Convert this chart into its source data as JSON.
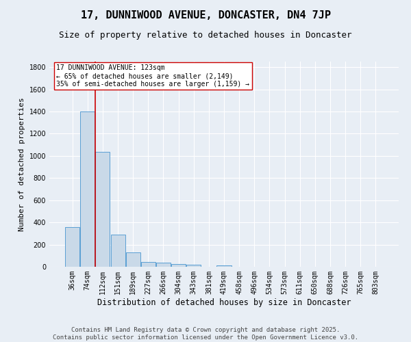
{
  "title": "17, DUNNIWOOD AVENUE, DONCASTER, DN4 7JP",
  "subtitle": "Size of property relative to detached houses in Doncaster",
  "xlabel": "Distribution of detached houses by size in Doncaster",
  "ylabel": "Number of detached properties",
  "categories": [
    "36sqm",
    "74sqm",
    "112sqm",
    "151sqm",
    "189sqm",
    "227sqm",
    "266sqm",
    "304sqm",
    "343sqm",
    "381sqm",
    "419sqm",
    "458sqm",
    "496sqm",
    "534sqm",
    "573sqm",
    "611sqm",
    "650sqm",
    "688sqm",
    "726sqm",
    "765sqm",
    "803sqm"
  ],
  "values": [
    360,
    1400,
    1035,
    290,
    130,
    42,
    35,
    25,
    18,
    0,
    15,
    0,
    0,
    0,
    0,
    0,
    0,
    0,
    0,
    0,
    0
  ],
  "bar_color": "#c9d9e8",
  "bar_edge_color": "#5a9fd4",
  "vline_color": "#cc0000",
  "annotation_text": "17 DUNNIWOOD AVENUE: 123sqm\n← 65% of detached houses are smaller (2,149)\n35% of semi-detached houses are larger (1,159) →",
  "annotation_box_color": "#ffffff",
  "annotation_box_edge": "#cc0000",
  "ylim": [
    0,
    1850
  ],
  "yticks": [
    0,
    200,
    400,
    600,
    800,
    1000,
    1200,
    1400,
    1600,
    1800
  ],
  "background_color": "#e8eef5",
  "grid_color": "#ffffff",
  "footer": "Contains HM Land Registry data © Crown copyright and database right 2025.\nContains public sector information licensed under the Open Government Licence v3.0.",
  "title_fontsize": 11,
  "subtitle_fontsize": 9,
  "xlabel_fontsize": 8.5,
  "ylabel_fontsize": 8,
  "tick_fontsize": 7,
  "footer_fontsize": 6.5
}
